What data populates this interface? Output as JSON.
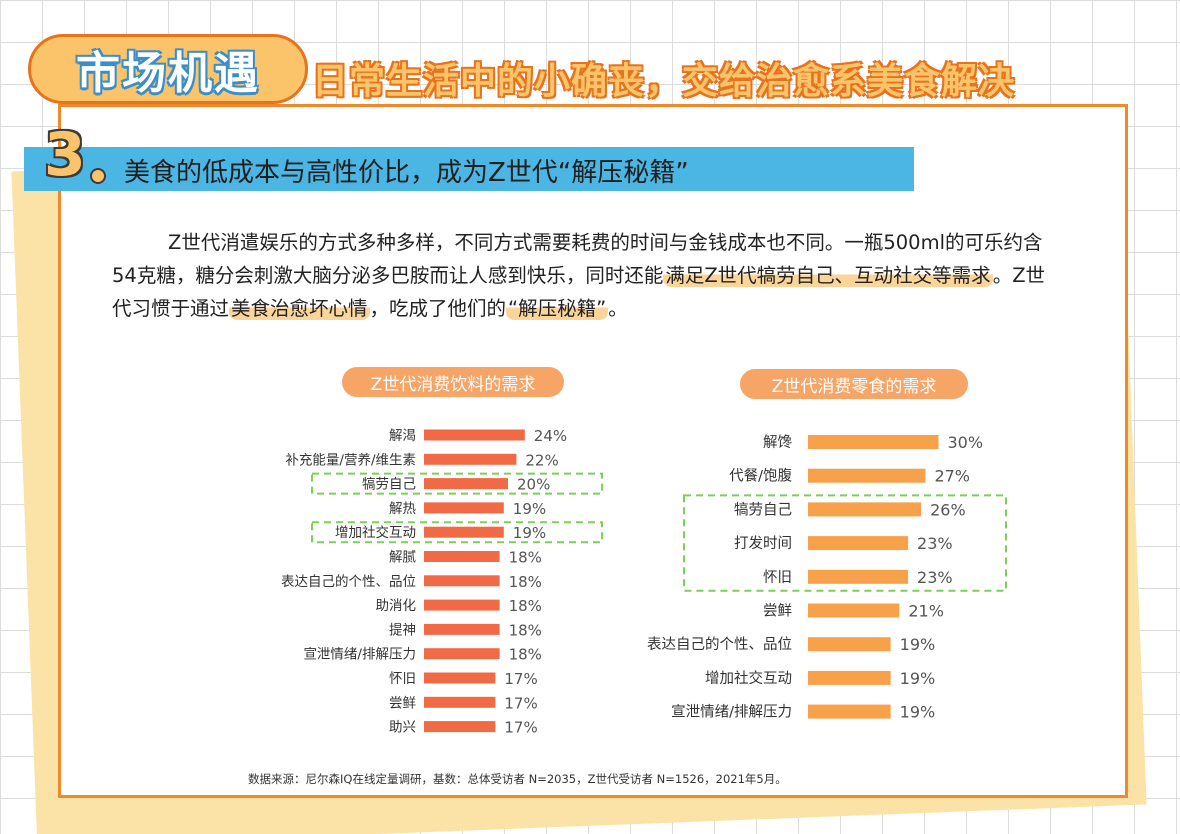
{
  "header": {
    "badge": "市场机遇",
    "slogan": "日常生活中的小确丧，交给治愈系美食解决"
  },
  "section": {
    "number": "3",
    "title": "美食的低成本与高性价比，成为Z世代“解压秘籍”"
  },
  "body": {
    "p1": "Z世代消遣娱乐的方式多种多样，不同方式需要耗费的时间与金钱成本也不同。一瓶500ml的可乐约含54克糖，糖分会刺激大脑分泌多巴胺而让人感到快乐，同时还能",
    "h1": "满足Z世代犒劳自己、互动社交等需求",
    "p2": "。Z世代习惯于通过",
    "h2": "美食治愈坏心情",
    "p3": "，吃成了他们的",
    "h3": "“解压秘籍”",
    "p4": "。"
  },
  "chart_data": [
    {
      "type": "bar",
      "orientation": "horizontal",
      "title": "Z世代消费饮料的需求",
      "categories": [
        "解渴",
        "补充能量/营养/维生素",
        "犒劳自己",
        "解热",
        "增加社交互动",
        "解腻",
        "表达自己的个性、品位",
        "助消化",
        "提神",
        "宣泄情绪/排解压力",
        "怀旧",
        "尝鲜",
        "助兴"
      ],
      "values": [
        24,
        22,
        20,
        19,
        19,
        18,
        18,
        18,
        18,
        18,
        17,
        17,
        17
      ],
      "labels": [
        "24%",
        "22%",
        "20%",
        "19%",
        "19%",
        "18%",
        "18%",
        "18%",
        "18%",
        "18%",
        "17%",
        "17%",
        "17%"
      ],
      "highlighted": [
        "犒劳自己",
        "增加社交互动"
      ],
      "bar_color": "#f06a45",
      "highlight_box_color": "#7ccf5a"
    },
    {
      "type": "bar",
      "orientation": "horizontal",
      "title": "Z世代消费零食的需求",
      "categories": [
        "解馋",
        "代餐/饱腹",
        "犒劳自己",
        "打发时间",
        "怀旧",
        "尝鲜",
        "表达自己的个性、品位",
        "增加社交互动",
        "宣泄情绪/排解压力"
      ],
      "values": [
        30,
        27,
        26,
        23,
        23,
        21,
        19,
        19,
        19
      ],
      "labels": [
        "30%",
        "27%",
        "26%",
        "23%",
        "23%",
        "21%",
        "19%",
        "19%",
        "19%"
      ],
      "highlighted": [
        "犒劳自己",
        "打发时间",
        "怀旧"
      ],
      "bar_color": "#f7a14a",
      "highlight_box_color": "#7ccf5a"
    }
  ],
  "source": "数据来源：尼尔森IQ在线定量调研，基数：总体受访者 N=2035，Z世代受访者 N=1526，2021年5月。"
}
